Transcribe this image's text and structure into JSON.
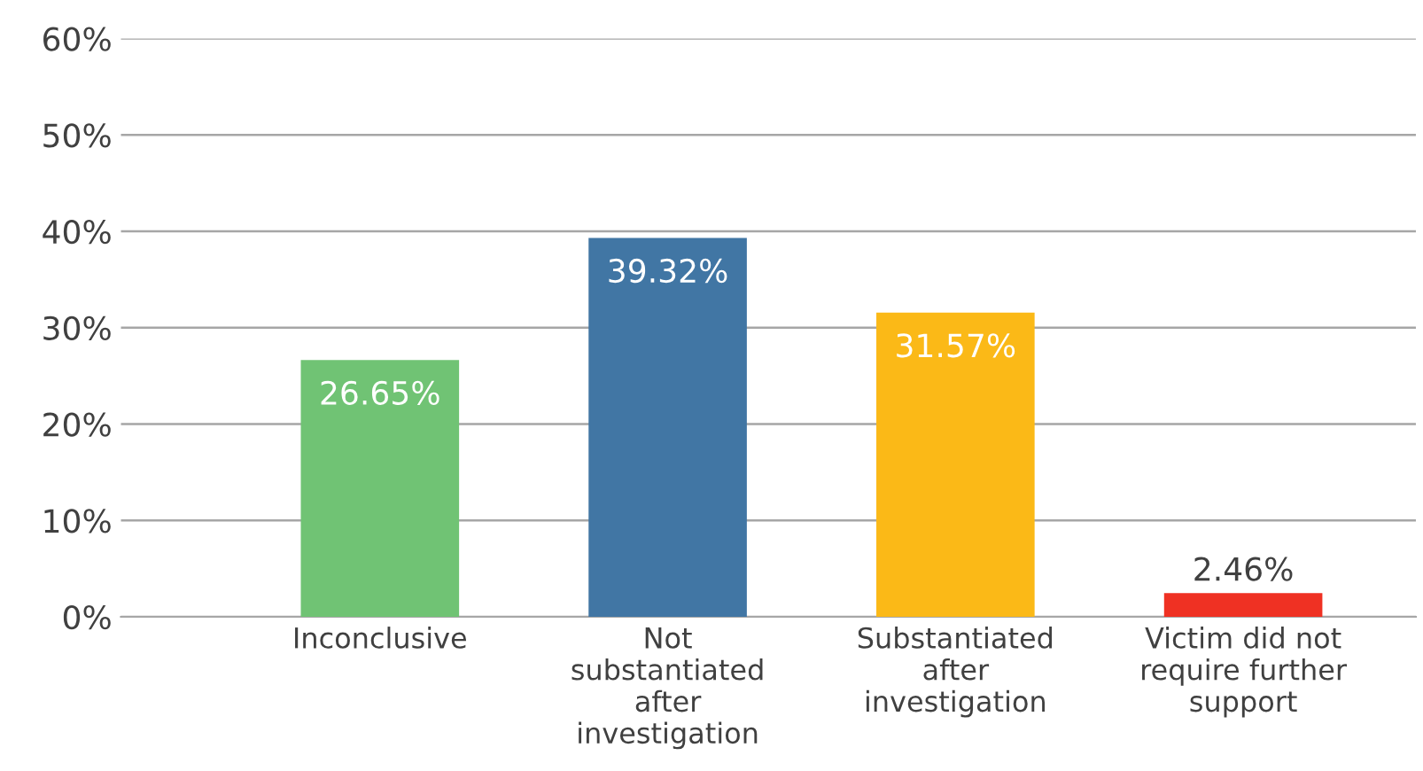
{
  "chart_data": {
    "type": "bar",
    "categories": [
      "Inconclusive",
      "Not\nsubstantiated\nafter\ninvestigation",
      "Substantiated\nafter\ninvestigation",
      "Victim did not\nrequire further\nsupport"
    ],
    "values": [
      26.65,
      39.32,
      31.57,
      2.46
    ],
    "colors": [
      "#70c374",
      "#4176a4",
      "#fbb917",
      "#ef3123"
    ],
    "ylim": [
      0,
      60
    ],
    "yticks": [
      {
        "value": 0,
        "label": "0%"
      },
      {
        "value": 10,
        "label": "10%"
      },
      {
        "value": 20,
        "label": "20%"
      },
      {
        "value": 30,
        "label": "30%"
      },
      {
        "value": 40,
        "label": "40%"
      },
      {
        "value": 50,
        "label": "50%"
      },
      {
        "value": 60,
        "label": "60%"
      }
    ],
    "value_labels": [
      "26.65%",
      "39.32%",
      "31.57%",
      "2.46%"
    ],
    "grid": "y"
  }
}
